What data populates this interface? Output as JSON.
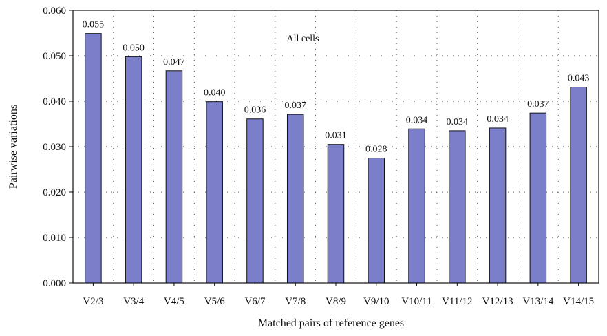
{
  "chart_data": {
    "type": "bar",
    "title": "",
    "annotation": "All cells",
    "xlabel": "Matched pairs of reference genes",
    "ylabel": "Pairwise variations",
    "categories": [
      "V2/3",
      "V3/4",
      "V4/5",
      "V5/6",
      "V6/7",
      "V7/8",
      "V8/9",
      "V9/10",
      "V10/11",
      "V11/12",
      "V12/13",
      "V13/14",
      "V14/15"
    ],
    "values": [
      0.055,
      0.05,
      0.047,
      0.04,
      0.036,
      0.037,
      0.031,
      0.028,
      0.034,
      0.034,
      0.034,
      0.037,
      0.043
    ],
    "value_labels": [
      "0.055",
      "0.050",
      "0.047",
      "0.040",
      "0.036",
      "0.037",
      "0.031",
      "0.028",
      "0.034",
      "0.034",
      "0.034",
      "0.037",
      "0.043"
    ],
    "bar_heights": [
      0.0549,
      0.0498,
      0.0467,
      0.0399,
      0.0361,
      0.0371,
      0.0305,
      0.0275,
      0.0339,
      0.0335,
      0.0341,
      0.0374,
      0.0431
    ],
    "ylim": [
      0,
      0.06
    ],
    "yticks": [
      "0.000",
      "0.010",
      "0.020",
      "0.030",
      "0.040",
      "0.050",
      "0.060"
    ],
    "grid": true,
    "legend": "none",
    "colors": {
      "bar": "#7b7fc9",
      "bar_edge": "#111111",
      "axis": "#111111",
      "grid": "#555555"
    }
  }
}
